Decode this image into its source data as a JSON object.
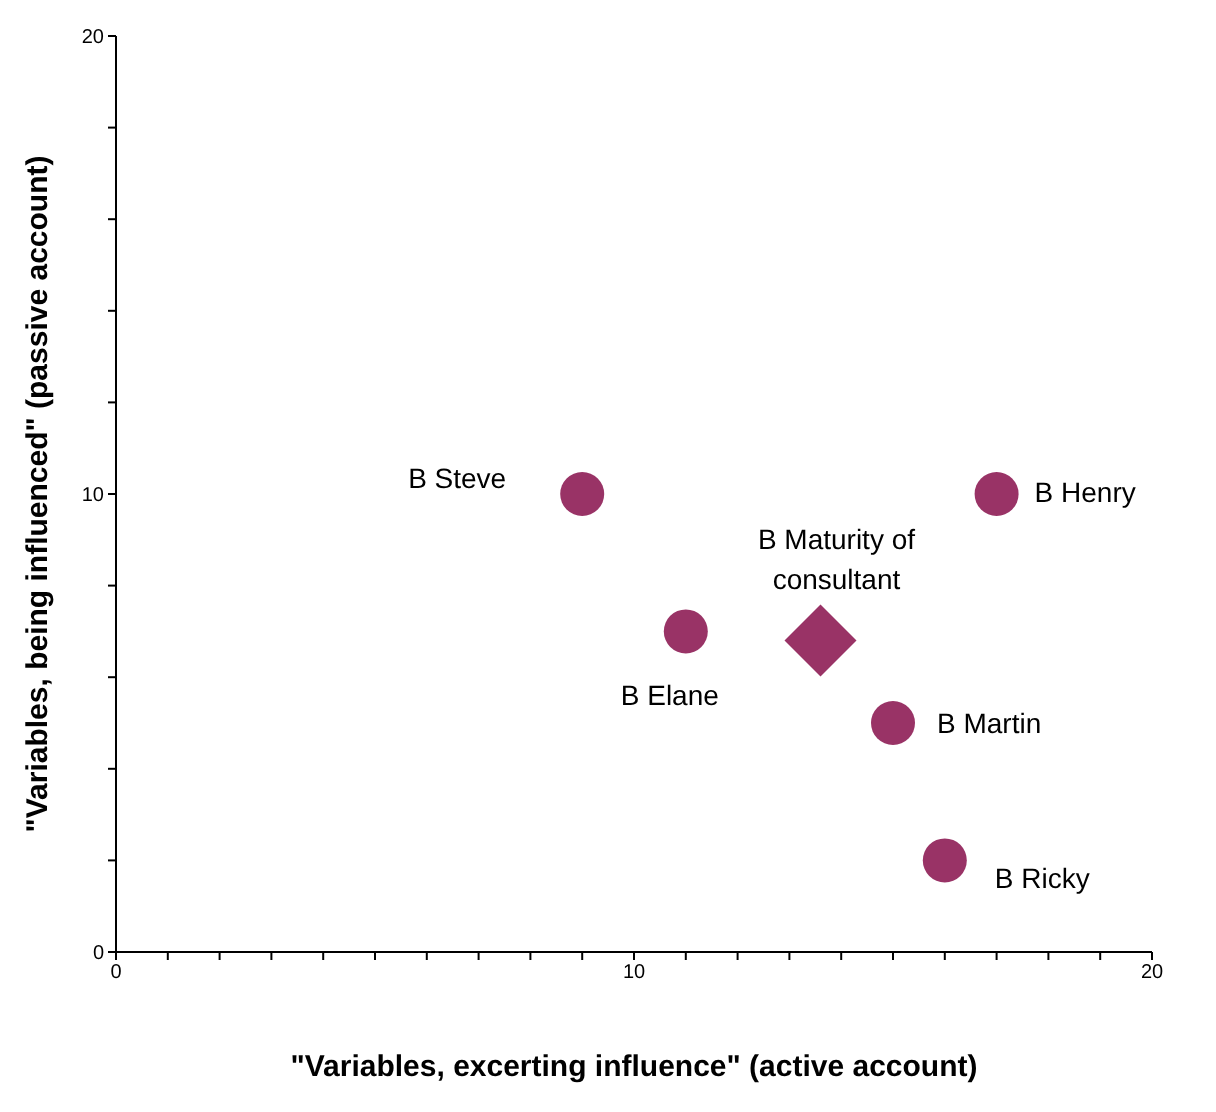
{
  "chart_data": {
    "type": "scatter",
    "xlabel": "\"Variables, excerting influence\" (active account)",
    "ylabel": "\"Variables, being influenced\" (passive account)",
    "xlim": [
      0,
      20
    ],
    "ylim": [
      0,
      20
    ],
    "xticks": [
      0,
      {
        "value": 1,
        "label": null
      },
      {
        "value": 2,
        "label": null
      },
      {
        "value": 3,
        "label": null
      },
      {
        "value": 4,
        "label": null
      },
      {
        "value": 5,
        "label": null
      },
      {
        "value": 6,
        "label": null
      },
      {
        "value": 7,
        "label": null
      },
      {
        "value": 8,
        "label": null
      },
      {
        "value": 9,
        "label": null
      },
      10,
      {
        "value": 11,
        "label": null
      },
      {
        "value": 12,
        "label": null
      },
      {
        "value": 13,
        "label": null
      },
      {
        "value": 14,
        "label": null
      },
      {
        "value": 15,
        "label": null
      },
      {
        "value": 16,
        "label": null
      },
      {
        "value": 17,
        "label": null
      },
      {
        "value": 18,
        "label": null
      },
      {
        "value": 19,
        "label": null
      },
      20
    ],
    "yticks": [
      0,
      {
        "value": 2,
        "label": null
      },
      {
        "value": 4,
        "label": null
      },
      {
        "value": 6,
        "label": null
      },
      {
        "value": 8,
        "label": null
      },
      10,
      {
        "value": 12,
        "label": null
      },
      {
        "value": 14,
        "label": null
      },
      {
        "value": 16,
        "label": null
      },
      {
        "value": 18,
        "label": null
      },
      20
    ],
    "grid": false,
    "legend": false,
    "series": [
      {
        "color": "#993366",
        "marker": "circle",
        "x": [
          9,
          11,
          17,
          15,
          16
        ],
        "values": [
          10,
          7,
          10,
          5,
          2
        ]
      },
      {
        "color": "#993366",
        "marker": "diamond",
        "x": [
          13.6
        ],
        "values": [
          6.8
        ]
      }
    ],
    "annotations": [
      {
        "text": "B Steve",
        "x": 9,
        "y": 10
      },
      {
        "text": "B Elane",
        "x": 11,
        "y": 7
      },
      {
        "text": "B Maturity of consultant",
        "x": 13.6,
        "y": 6.8
      },
      {
        "text": "B Henry",
        "x": 17,
        "y": 10
      },
      {
        "text": "B Martin",
        "x": 15,
        "y": 5
      },
      {
        "text": "B Ricky",
        "x": 16,
        "y": 2
      }
    ]
  }
}
